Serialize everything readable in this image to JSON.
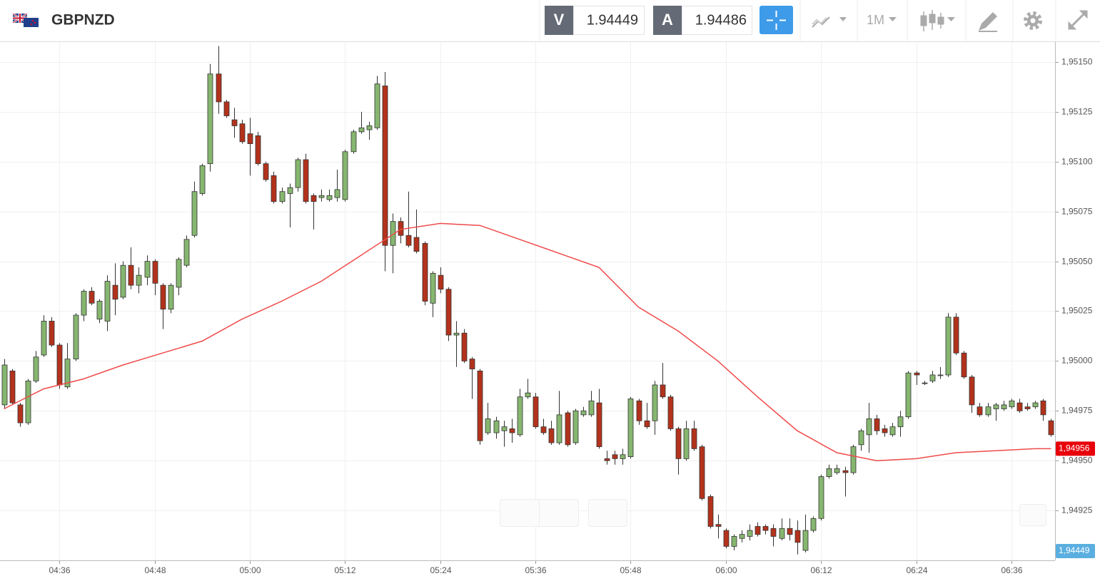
{
  "chart_data": {
    "type": "candlestick",
    "title": "GBPNZD",
    "timeframe": "1M",
    "bid": {
      "label": "V",
      "value": 1.94449
    },
    "ask": {
      "label": "A",
      "value": 1.94486
    },
    "up_color": "#86b66f",
    "down_color": "#b3321c",
    "grid": true,
    "xlim": [
      268.5,
      401.5
    ],
    "ylim": [
      1.949,
      1.9516
    ],
    "xticks": [
      {
        "value": 276,
        "label": "04:36"
      },
      {
        "value": 288,
        "label": "04:48"
      },
      {
        "value": 300,
        "label": "05:00"
      },
      {
        "value": 312,
        "label": "05:12"
      },
      {
        "value": 324,
        "label": "05:24"
      },
      {
        "value": 336,
        "label": "05:36"
      },
      {
        "value": 348,
        "label": "05:48"
      },
      {
        "value": 360,
        "label": "06:00"
      },
      {
        "value": 372,
        "label": "06:12"
      },
      {
        "value": 384,
        "label": "06:24"
      },
      {
        "value": 396,
        "label": "06:36"
      }
    ],
    "yticks": [
      {
        "value": 1.94925,
        "label": "1,94925"
      },
      {
        "value": 1.9495,
        "label": "1,94950"
      },
      {
        "value": 1.94975,
        "label": "1,94975"
      },
      {
        "value": 1.95,
        "label": "1,95000"
      },
      {
        "value": 1.95025,
        "label": "1,95025"
      },
      {
        "value": 1.9505,
        "label": "1,95050"
      },
      {
        "value": 1.95075,
        "label": "1,95075"
      },
      {
        "value": 1.951,
        "label": "1,95100"
      },
      {
        "value": 1.95125,
        "label": "1,95125"
      },
      {
        "value": 1.9515,
        "label": "1,95150"
      }
    ],
    "last_price": {
      "value": 1.94956,
      "label": "1,94956",
      "color": "#e8000b"
    },
    "bid_tag": {
      "value": 1.94449,
      "label": "1,94449",
      "color": "#5aafe0"
    },
    "x": [
      269,
      270,
      271,
      272,
      273,
      274,
      275,
      276,
      277,
      278,
      279,
      280,
      281,
      282,
      283,
      284,
      285,
      286,
      287,
      288,
      289,
      290,
      291,
      292,
      293,
      294,
      295,
      296,
      297,
      298,
      299,
      300,
      301,
      302,
      303,
      304,
      305,
      306,
      307,
      308,
      309,
      310,
      311,
      312,
      313,
      314,
      315,
      316,
      317,
      318,
      319,
      320,
      321,
      322,
      323,
      324,
      325,
      326,
      327,
      328,
      329,
      330,
      331,
      332,
      333,
      334,
      335,
      336,
      337,
      338,
      339,
      340,
      341,
      342,
      343,
      344,
      345,
      346,
      347,
      348,
      349,
      350,
      351,
      352,
      353,
      354,
      355,
      356,
      357,
      358,
      359,
      360,
      361,
      362,
      363,
      364,
      365,
      366,
      367,
      368,
      369,
      370,
      371,
      372,
      373,
      374,
      375,
      376,
      377,
      378,
      379,
      380,
      381,
      382,
      383,
      384,
      385,
      386,
      387,
      388,
      389,
      390,
      391,
      392,
      393,
      394,
      395,
      396,
      397,
      398,
      399,
      400,
      401
    ],
    "open": [
      1.94978,
      1.94995,
      1.94978,
      1.94969,
      1.9499,
      1.95003,
      1.9502,
      1.95008,
      1.94987,
      1.95001,
      1.95023,
      1.95035,
      1.95021,
      1.9502,
      1.95038,
      1.95032,
      1.95048,
      1.95038,
      1.95042,
      1.9505,
      1.95038,
      1.95026,
      1.95037,
      1.95048,
      1.95063,
      1.95084,
      1.95099,
      1.95144,
      1.9513,
      1.95121,
      1.95119,
      1.95114,
      1.95113,
      1.95099,
      1.95093,
      1.9508,
      1.95084,
      1.95087,
      1.95101,
      1.95083,
      1.95082,
      1.95081,
      1.95082,
      1.95081,
      1.95105,
      1.95115,
      1.95116,
      1.95117,
      1.95138,
      1.95058,
      1.9507,
      1.95063,
      1.95062,
      1.95059,
      1.95029,
      1.95043,
      1.95036,
      1.95013,
      1.95014,
      1.95001,
      1.94995,
      1.94964,
      1.94964,
      1.94965,
      1.94966,
      1.94963,
      1.94982,
      1.94982,
      1.94967,
      1.94966,
      1.94959,
      1.94974,
      1.94959,
      1.94973,
      1.94973,
      1.94979,
      1.94951,
      1.94953,
      1.94951,
      1.94952,
      1.9498,
      1.9497,
      1.9497,
      1.94988,
      1.94982,
      1.94966,
      1.94951,
      1.94966,
      1.94957,
      1.94932,
      1.94918,
      1.94915,
      1.94907,
      1.94911,
      1.94912,
      1.94917,
      1.94917,
      1.94916,
      1.94911,
      1.94916,
      1.94915,
      1.94905,
      1.94915,
      1.94921,
      1.94942,
      1.94944,
      1.94945,
      1.94944,
      1.94958,
      1.94963,
      1.94971,
      1.94966,
      1.94963,
      1.94967,
      1.94972,
      1.94994,
      1.94989,
      1.9499,
      1.94993,
      1.94993,
      1.95022,
      1.95004,
      1.94992,
      1.94977,
      1.94973,
      1.94976,
      1.94976,
      1.94977,
      1.94979,
      1.94977,
      1.94977,
      1.9498,
      1.9497
    ],
    "high": [
      1.95001,
      1.94996,
      1.94979,
      1.94991,
      1.95005,
      1.95023,
      1.95022,
      1.95009,
      1.95009,
      1.95024,
      1.95036,
      1.95037,
      1.95031,
      1.95043,
      1.95049,
      1.9505,
      1.95057,
      1.95047,
      1.95053,
      1.95051,
      1.95039,
      1.95039,
      1.95052,
      1.95063,
      1.9509,
      1.95099,
      1.95149,
      1.95158,
      1.95131,
      1.95127,
      1.95121,
      1.95122,
      1.95115,
      1.951,
      1.95095,
      1.95087,
      1.95089,
      1.95102,
      1.95104,
      1.95084,
      1.95086,
      1.95086,
      1.95096,
      1.95106,
      1.95116,
      1.95125,
      1.9512,
      1.95143,
      1.95145,
      1.95074,
      1.95072,
      1.95085,
      1.95076,
      1.9506,
      1.95045,
      1.95047,
      1.95037,
      1.9502,
      1.95016,
      1.95002,
      1.94996,
      1.94979,
      1.94972,
      1.9497,
      1.94971,
      1.94986,
      1.94991,
      1.94984,
      1.94971,
      1.9497,
      1.94985,
      1.94975,
      1.94976,
      1.94977,
      1.94985,
      1.94986,
      1.94955,
      1.94955,
      1.94956,
      1.94982,
      1.94981,
      1.94979,
      1.9499,
      1.94999,
      1.94983,
      1.94967,
      1.9497,
      1.9497,
      1.94958,
      1.94933,
      1.94923,
      1.94916,
      1.94913,
      1.94915,
      1.94918,
      1.94919,
      1.94918,
      1.94918,
      1.94921,
      1.94921,
      1.9492,
      1.94923,
      1.94922,
      1.94943,
      1.94948,
      1.94948,
      1.94947,
      1.94958,
      1.94966,
      1.94979,
      1.94973,
      1.94968,
      1.94969,
      1.94975,
      1.94995,
      1.94995,
      1.9499,
      1.94995,
      1.94997,
      1.95024,
      1.95024,
      1.95005,
      1.94993,
      1.94979,
      1.94979,
      1.94979,
      1.9498,
      1.94981,
      1.94981,
      1.94979,
      1.9498,
      1.94981,
      1.94971
    ],
    "low": [
      1.94976,
      1.94978,
      1.94967,
      1.94968,
      1.94989,
      1.95002,
      1.95007,
      1.94986,
      1.94986,
      1.95,
      1.9502,
      1.95028,
      1.95019,
      1.95015,
      1.95023,
      1.95031,
      1.95036,
      1.95034,
      1.95038,
      1.95033,
      1.95016,
      1.95024,
      1.95033,
      1.95047,
      1.95062,
      1.95083,
      1.95095,
      1.95124,
      1.95122,
      1.95112,
      1.95109,
      1.95093,
      1.95098,
      1.9509,
      1.95079,
      1.95079,
      1.95067,
      1.95085,
      1.95079,
      1.95066,
      1.9508,
      1.9508,
      1.9508,
      1.9508,
      1.95104,
      1.95114,
      1.95111,
      1.95116,
      1.95045,
      1.95044,
      1.95059,
      1.95057,
      1.95054,
      1.95028,
      1.95022,
      1.95034,
      1.9501,
      1.94997,
      1.94999,
      1.94981,
      1.94958,
      1.94963,
      1.94961,
      1.94957,
      1.94959,
      1.94962,
      1.94981,
      1.94966,
      1.94963,
      1.94958,
      1.94958,
      1.94957,
      1.94958,
      1.94972,
      1.94972,
      1.94956,
      1.94948,
      1.94948,
      1.94948,
      1.94951,
      1.94968,
      1.94966,
      1.94963,
      1.94981,
      1.94965,
      1.94943,
      1.9495,
      1.94955,
      1.9493,
      1.94916,
      1.94911,
      1.94906,
      1.94905,
      1.94909,
      1.9491,
      1.94912,
      1.94913,
      1.94907,
      1.9491,
      1.9491,
      1.94903,
      1.94904,
      1.94914,
      1.9492,
      1.94941,
      1.94943,
      1.94932,
      1.94943,
      1.94955,
      1.94954,
      1.94963,
      1.94962,
      1.94962,
      1.94962,
      1.94971,
      1.94988,
      1.94988,
      1.94989,
      1.94991,
      1.94992,
      1.95003,
      1.94991,
      1.94974,
      1.94972,
      1.94972,
      1.9497,
      1.94975,
      1.94976,
      1.94974,
      1.94975,
      1.94976,
      1.9497,
      1.94962
    ],
    "close": [
      1.94998,
      1.94979,
      1.94969,
      1.9499,
      1.95002,
      1.9502,
      1.95008,
      1.94988,
      1.95001,
      1.95023,
      1.95035,
      1.95029,
      1.9503,
      1.9504,
      1.95031,
      1.95048,
      1.95038,
      1.95043,
      1.9505,
      1.95039,
      1.95026,
      1.95038,
      1.95051,
      1.95061,
      1.95085,
      1.95098,
      1.95144,
      1.9513,
      1.95123,
      1.95118,
      1.9511,
      1.95109,
      1.95099,
      1.95091,
      1.9508,
      1.95085,
      1.95087,
      1.95101,
      1.9508,
      1.9508,
      1.95083,
      1.95083,
      1.95086,
      1.95105,
      1.95115,
      1.95117,
      1.95118,
      1.95139,
      1.95058,
      1.9507,
      1.95063,
      1.95058,
      1.95055,
      1.9503,
      1.95044,
      1.95036,
      1.95013,
      1.95014,
      1.95,
      1.94996,
      1.9496,
      1.94971,
      1.9497,
      1.94967,
      1.94964,
      1.94982,
      1.94984,
      1.94967,
      1.94964,
      1.94959,
      1.94973,
      1.94958,
      1.94975,
      1.94975,
      1.9498,
      1.94957,
      1.9495,
      1.94951,
      1.94953,
      1.94981,
      1.9497,
      1.94967,
      1.94988,
      1.94982,
      1.94966,
      1.94951,
      1.94966,
      1.94956,
      1.94931,
      1.94917,
      1.94917,
      1.94907,
      1.94912,
      1.94913,
      1.94915,
      1.94913,
      1.94915,
      1.94912,
      1.94916,
      1.94913,
      1.94909,
      1.94915,
      1.94921,
      1.94942,
      1.94946,
      1.94946,
      1.94944,
      1.94957,
      1.94965,
      1.94971,
      1.94965,
      1.94964,
      1.94967,
      1.94972,
      1.94994,
      1.94993,
      1.94989,
      1.94993,
      1.94993,
      1.95022,
      1.95004,
      1.94992,
      1.94978,
      1.94973,
      1.94977,
      1.94978,
      1.94978,
      1.9498,
      1.94975,
      1.94976,
      1.94979,
      1.94973,
      1.94963
    ],
    "ma": {
      "color": "#f04a4a",
      "x": [
        269,
        274,
        279,
        284,
        289,
        294,
        299,
        304,
        309,
        314,
        319,
        324,
        329,
        334,
        339,
        344,
        349,
        354,
        359,
        364,
        369,
        374,
        379,
        384,
        389,
        394,
        399,
        401
      ],
      "values": [
        1.94976,
        1.94986,
        1.94991,
        1.94998,
        1.95004,
        1.9501,
        1.95021,
        1.9503,
        1.9504,
        1.95053,
        1.95066,
        1.95069,
        1.95068,
        1.95061,
        1.95054,
        1.95047,
        1.95027,
        1.95015,
        1.95,
        1.94982,
        1.94965,
        1.94954,
        1.9495,
        1.94951,
        1.94954,
        1.94955,
        1.94956,
        1.94956
      ]
    }
  }
}
